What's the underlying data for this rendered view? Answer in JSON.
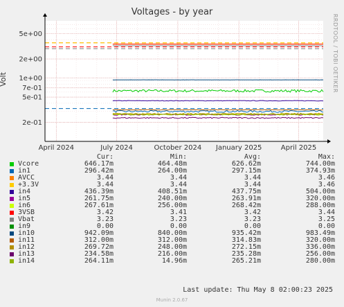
{
  "chart_data": {
    "type": "line",
    "title": "Voltages - by year",
    "ylabel": "Volt",
    "yscale": "log",
    "ylim": [
      0.1,
      8
    ],
    "xlim": [
      "2024-03-15",
      "2025-05-08"
    ],
    "y_ticks": [
      {
        "v": 5,
        "label": "5e+00"
      },
      {
        "v": 2,
        "label": "2e+00"
      },
      {
        "v": 1,
        "label": "1e+00"
      },
      {
        "v": 0.7,
        "label": "7e-01"
      },
      {
        "v": 0.5,
        "label": "5e-01"
      },
      {
        "v": 0.2,
        "label": "2e-01"
      }
    ],
    "x_ticks": [
      {
        "d": "2024-04-01",
        "label": "April 2024"
      },
      {
        "d": "2024-07-01",
        "label": "July 2024"
      },
      {
        "d": "2024-10-01",
        "label": "October 2024"
      },
      {
        "d": "2025-01-01",
        "label": "January 2025"
      },
      {
        "d": "2025-04-01",
        "label": "April 2025"
      }
    ],
    "data_start": "2024-06-25",
    "grid": true,
    "legend": "bottom",
    "columns": [
      "Cur:",
      "Min:",
      "Avg:",
      "Max:"
    ],
    "series": [
      {
        "name": "Vcore",
        "color": "#00cc00",
        "cur": "646.17m",
        "min": "464.48m",
        "avg": "626.62m",
        "max": "744.00m",
        "value": 0.627,
        "noise": 0.03,
        "warn": null
      },
      {
        "name": "in1",
        "color": "#0066b3",
        "cur": "296.42m",
        "min": "264.00m",
        "avg": "297.15m",
        "max": "374.93m",
        "value": 0.297,
        "noise": 0.01,
        "warn": 0.33
      },
      {
        "name": "AVCC",
        "color": "#ff8000",
        "cur": "3.44",
        "min": "3.44",
        "avg": "3.44",
        "max": "3.46",
        "value": 3.44,
        "noise": 0,
        "warn": 3.6
      },
      {
        "name": "+3.3V",
        "color": "#ffcc00",
        "cur": "3.44",
        "min": "3.44",
        "avg": "3.44",
        "max": "3.46",
        "value": 3.44,
        "noise": 0,
        "warn": 3.6
      },
      {
        "name": "in4",
        "color": "#330099",
        "cur": "436.39m",
        "min": "408.51m",
        "avg": "437.75m",
        "max": "504.00m",
        "value": 0.438,
        "noise": 0.004,
        "warn": null
      },
      {
        "name": "in5",
        "color": "#990099",
        "cur": "261.75m",
        "min": "240.00m",
        "avg": "263.91m",
        "max": "320.00m",
        "value": 0.264,
        "noise": 0.006,
        "warn": null
      },
      {
        "name": "in6",
        "color": "#ccff00",
        "cur": "267.61m",
        "min": "256.00m",
        "avg": "268.42m",
        "max": "288.00m",
        "value": 0.268,
        "noise": 0.004,
        "warn": null
      },
      {
        "name": "3VSB",
        "color": "#ff0000",
        "cur": "3.42",
        "min": "3.41",
        "avg": "3.42",
        "max": "3.44",
        "value": 3.42,
        "noise": 0,
        "warn": 3.1
      },
      {
        "name": "Vbat",
        "color": "#808080",
        "cur": "3.23",
        "min": "3.23",
        "avg": "3.23",
        "max": "3.25",
        "value": 3.23,
        "noise": 0,
        "warn": 2.9
      },
      {
        "name": "in9",
        "color": "#008f00",
        "cur": "0.00",
        "min": "0.00",
        "avg": "0.00",
        "max": "0.00",
        "value": 0,
        "noise": 0,
        "warn": null
      },
      {
        "name": "in10",
        "color": "#00487d",
        "cur": "942.09m",
        "min": "840.00m",
        "avg": "935.42m",
        "max": "983.49m",
        "value": 0.935,
        "noise": 0.003,
        "warn": null
      },
      {
        "name": "in11",
        "color": "#b35a00",
        "cur": "312.00m",
        "min": "312.00m",
        "avg": "314.83m",
        "max": "320.00m",
        "value": 0.3148,
        "noise": 0.002,
        "warn": null
      },
      {
        "name": "in12",
        "color": "#b38f00",
        "cur": "269.72m",
        "min": "248.00m",
        "avg": "272.15m",
        "max": "336.00m",
        "value": 0.272,
        "noise": 0.006,
        "warn": null
      },
      {
        "name": "in13",
        "color": "#6b006b",
        "cur": "234.58m",
        "min": "216.00m",
        "avg": "235.28m",
        "max": "256.00m",
        "value": 0.235,
        "noise": 0.005,
        "warn": null
      },
      {
        "name": "in14",
        "color": "#8fb300",
        "cur": "264.11m",
        "min": "14.96m",
        "avg": "265.21m",
        "max": "280.00m",
        "value": 0.265,
        "noise": 0.005,
        "warn": null
      }
    ],
    "last_update": "Last update: Thu May  8 02:00:23 2025"
  },
  "watermark": "RRDTOOL / TOBI OETIKER",
  "footer": "Munin 2.0.67"
}
